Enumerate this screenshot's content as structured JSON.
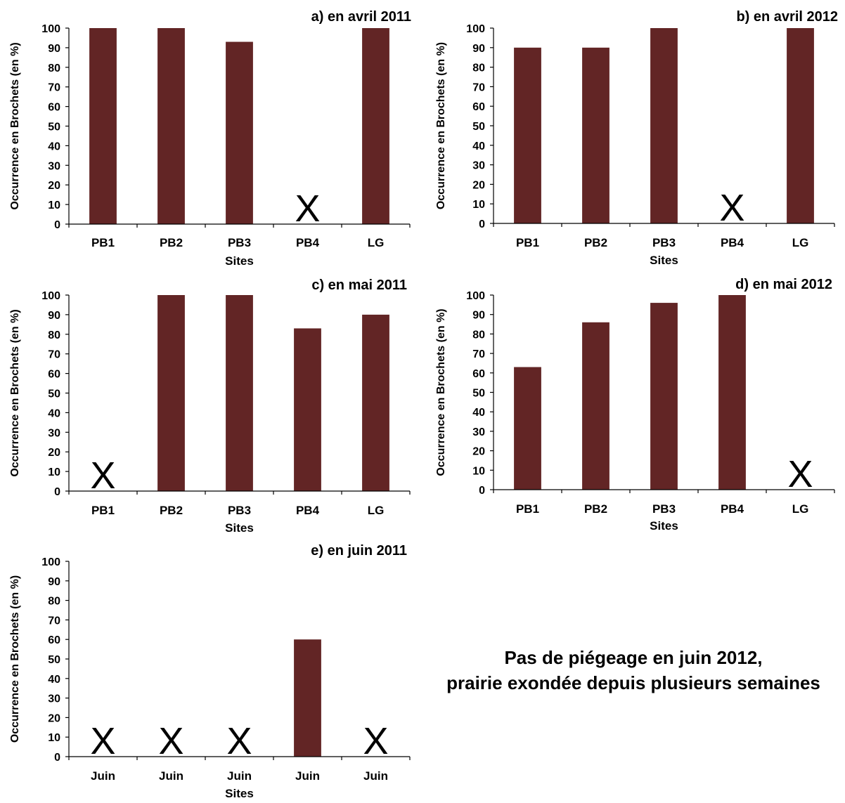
{
  "colors": {
    "bar": "#622525",
    "axis": "#000000",
    "marker": "#000000"
  },
  "missing_marker": "X",
  "note": {
    "line1": "Pas de piégeage en juin 2012,",
    "line2": "prairie exondée depuis plusieurs semaines"
  },
  "chart_data": [
    {
      "type": "bar",
      "title": "a) en avril 2011",
      "ylabel": "Occurrence en Brochets (en %)",
      "xlabel": "Sites",
      "categories": [
        "PB1",
        "PB2",
        "PB3",
        "PB4",
        "LG"
      ],
      "values": [
        100,
        100,
        93,
        null,
        100
      ],
      "missing": [
        false,
        false,
        false,
        true,
        false
      ],
      "ylim": [
        0,
        100
      ],
      "yticks": [
        0,
        10,
        20,
        30,
        40,
        50,
        60,
        70,
        80,
        90,
        100
      ]
    },
    {
      "type": "bar",
      "title": "b) en avril 2012",
      "ylabel": "Occurrence en Brochets (en %)",
      "xlabel": "Sites",
      "categories": [
        "PB1",
        "PB2",
        "PB3",
        "PB4",
        "LG"
      ],
      "values": [
        90,
        90,
        100,
        null,
        100
      ],
      "missing": [
        false,
        false,
        false,
        true,
        false
      ],
      "ylim": [
        0,
        100
      ],
      "yticks": [
        0,
        10,
        20,
        30,
        40,
        50,
        60,
        70,
        80,
        90,
        100
      ]
    },
    {
      "type": "bar",
      "title": "c) en mai 2011",
      "ylabel": "Occurrence en Brochets (en %)",
      "xlabel": "Sites",
      "categories": [
        "PB1",
        "PB2",
        "PB3",
        "PB4",
        "LG"
      ],
      "values": [
        null,
        100,
        100,
        83,
        90
      ],
      "missing": [
        true,
        false,
        false,
        false,
        false
      ],
      "ylim": [
        0,
        100
      ],
      "yticks": [
        0,
        10,
        20,
        30,
        40,
        50,
        60,
        70,
        80,
        90,
        100
      ]
    },
    {
      "type": "bar",
      "title": "d) en mai 2012",
      "ylabel": "Occurrence en Brochets (en %)",
      "xlabel": "Sites",
      "categories": [
        "PB1",
        "PB2",
        "PB3",
        "PB4",
        "LG"
      ],
      "values": [
        63,
        86,
        96,
        100,
        null
      ],
      "missing": [
        false,
        false,
        false,
        false,
        true
      ],
      "ylim": [
        0,
        100
      ],
      "yticks": [
        0,
        10,
        20,
        30,
        40,
        50,
        60,
        70,
        80,
        90,
        100
      ]
    },
    {
      "type": "bar",
      "title": "e) en juin 2011",
      "ylabel": "Occurrence en Brochets (en %)",
      "xlabel": "Sites",
      "categories": [
        "Juin",
        "Juin",
        "Juin",
        "Juin",
        "Juin"
      ],
      "values": [
        null,
        null,
        null,
        60,
        null
      ],
      "missing": [
        true,
        true,
        true,
        false,
        true
      ],
      "ylim": [
        0,
        100
      ],
      "yticks": [
        0,
        10,
        20,
        30,
        40,
        50,
        60,
        70,
        80,
        90,
        100
      ]
    }
  ]
}
